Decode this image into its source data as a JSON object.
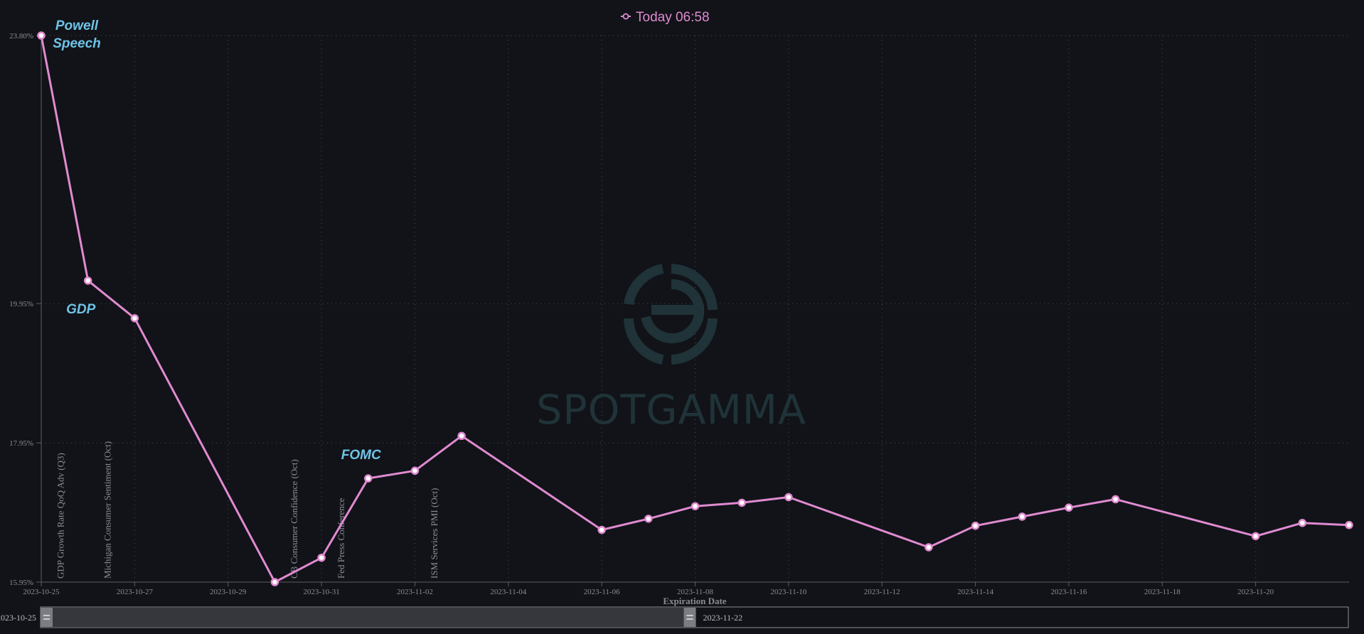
{
  "legend": {
    "series_name": "Today 06:58",
    "color": "#e08ad0"
  },
  "watermark": {
    "brand": "SPOTGAMMA"
  },
  "chart_data": {
    "type": "line",
    "xlabel": "Expiration Date",
    "ylabel": "",
    "grid": true,
    "x_range": [
      "2023-10-25",
      "2023-11-22"
    ],
    "ylim": [
      15.95,
      23.8
    ],
    "yticks": [
      "23.80%",
      "19.95%",
      "17.95%",
      "15.95%"
    ],
    "ytick_values": [
      23.8,
      19.95,
      17.95,
      15.95
    ],
    "xticks": [
      "2023-10-25",
      "2023-10-27",
      "2023-10-29",
      "2023-10-31",
      "2023-11-02",
      "2023-11-04",
      "2023-11-06",
      "2023-11-08",
      "2023-11-10",
      "2023-11-12",
      "2023-11-14",
      "2023-11-16",
      "2023-11-18",
      "2023-11-20"
    ],
    "series": [
      {
        "name": "Today 06:58",
        "color": "#e08ad0",
        "points": [
          {
            "x": "2023-10-25",
            "y": 23.8
          },
          {
            "x": "2023-10-26",
            "y": 20.28
          },
          {
            "x": "2023-10-27",
            "y": 19.74
          },
          {
            "x": "2023-10-30",
            "y": 15.95
          },
          {
            "x": "2023-10-31",
            "y": 16.3
          },
          {
            "x": "2023-11-01",
            "y": 17.44
          },
          {
            "x": "2023-11-02",
            "y": 17.55
          },
          {
            "x": "2023-11-03",
            "y": 18.05
          },
          {
            "x": "2023-11-06",
            "y": 16.7
          },
          {
            "x": "2023-11-07",
            "y": 16.86
          },
          {
            "x": "2023-11-08",
            "y": 17.04
          },
          {
            "x": "2023-11-09",
            "y": 17.09
          },
          {
            "x": "2023-11-10",
            "y": 17.17
          },
          {
            "x": "2023-11-13",
            "y": 16.45
          },
          {
            "x": "2023-11-14",
            "y": 16.76
          },
          {
            "x": "2023-11-15",
            "y": 16.89
          },
          {
            "x": "2023-11-16",
            "y": 17.02
          },
          {
            "x": "2023-11-17",
            "y": 17.14
          },
          {
            "x": "2023-11-20",
            "y": 16.61
          },
          {
            "x": "2023-11-21",
            "y": 16.8
          },
          {
            "x": "2023-11-22",
            "y": 16.77
          }
        ]
      }
    ],
    "annotations": [
      {
        "text": "Powell\nSpeech",
        "x": "2023-10-25"
      },
      {
        "text": "GDP",
        "x": "2023-10-26"
      },
      {
        "text": "FOMC",
        "x": "2023-11-01"
      }
    ],
    "event_labels": [
      {
        "text": "GDP Growth Rate QoQ Adv (Q3)",
        "x": "2023-10-26"
      },
      {
        "text": "Michigan Consumer Sentiment (Oct)",
        "x": "2023-10-27"
      },
      {
        "text": "CB Consumer Confidence (Oct)",
        "x": "2023-10-31"
      },
      {
        "text": "Fed Press Conference",
        "x": "2023-11-01"
      },
      {
        "text": "ISM Services PMI (Oct)",
        "x": "2023-11-03"
      }
    ]
  },
  "zoom": {
    "start_label": "2023-10-25",
    "end_label": "2023-11-22",
    "range_fraction": 0.475
  }
}
